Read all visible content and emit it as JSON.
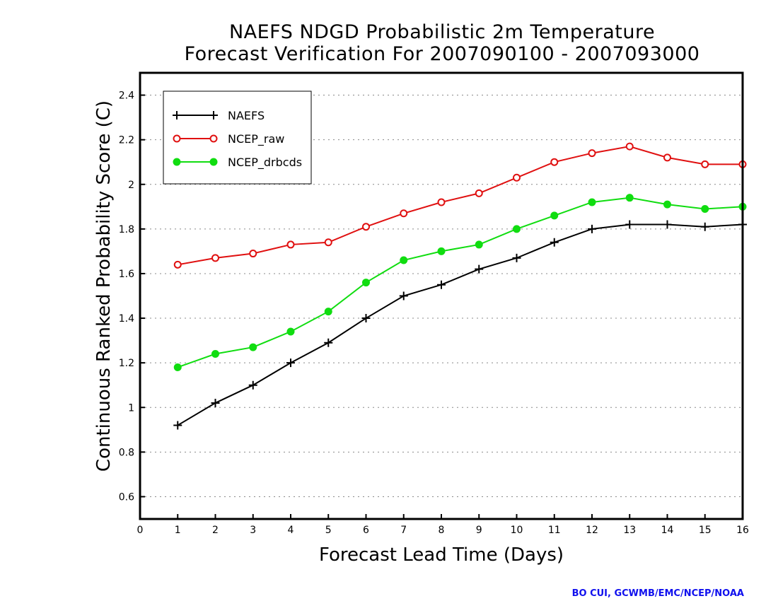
{
  "chart_data": {
    "type": "line",
    "title": [
      "NAEFS NDGD Probabilistic 2m Temperature",
      "Forecast Verification For 2007090100 - 2007093000"
    ],
    "xlabel": "Forecast Lead Time (Days)",
    "ylabel": "Continuous Ranked Probability Score (C)",
    "xlim": [
      0,
      16
    ],
    "ylim": [
      0.5,
      2.5
    ],
    "xticks": [
      0,
      1,
      2,
      3,
      4,
      5,
      6,
      7,
      8,
      9,
      10,
      11,
      12,
      13,
      14,
      15,
      16
    ],
    "yticks": [
      0.6,
      0.8,
      1,
      1.2,
      1.4,
      1.6,
      1.8,
      2,
      2.2,
      2.4
    ],
    "ytick_labels": [
      "0.6",
      "0.8",
      "1",
      "1.2",
      "1.4",
      "1.6",
      "1.8",
      "2",
      "2.2",
      "2.4"
    ],
    "grid": "horizontal dotted",
    "legend_position": "top-left",
    "x": [
      1,
      2,
      3,
      4,
      5,
      6,
      7,
      8,
      9,
      10,
      11,
      12,
      13,
      14,
      15,
      16
    ],
    "series": [
      {
        "name": "NAEFS",
        "color": "#000000",
        "marker": "plus",
        "values": [
          0.92,
          1.02,
          1.1,
          1.2,
          1.29,
          1.4,
          1.5,
          1.55,
          1.62,
          1.67,
          1.74,
          1.8,
          1.82,
          1.82,
          1.81,
          1.82
        ]
      },
      {
        "name": "NCEP_raw",
        "color": "#e01010",
        "marker": "open-circle",
        "values": [
          1.64,
          1.67,
          1.69,
          1.73,
          1.74,
          1.81,
          1.87,
          1.92,
          1.96,
          2.03,
          2.1,
          2.14,
          2.17,
          2.12,
          2.09,
          2.09
        ]
      },
      {
        "name": "NCEP_drbcds",
        "color": "#10dd10",
        "marker": "filled-circle",
        "values": [
          1.18,
          1.24,
          1.27,
          1.34,
          1.43,
          1.56,
          1.66,
          1.7,
          1.73,
          1.8,
          1.86,
          1.92,
          1.94,
          1.91,
          1.89,
          1.9
        ]
      }
    ]
  },
  "credit": "BO CUI, GCWMB/EMC/NCEP/NOAA"
}
